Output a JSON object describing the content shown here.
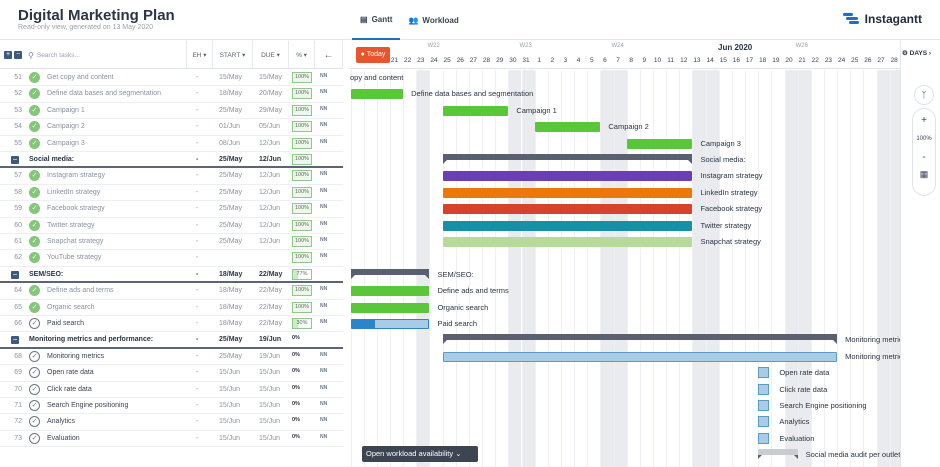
{
  "header": {
    "title": "Digital Marketing Plan",
    "subtitle": "Read-only view, generated on 13 May 2020",
    "tabs": [
      {
        "label": "Gantt",
        "icon": "gantt-icon"
      },
      {
        "label": "Workload",
        "icon": "users-icon"
      }
    ],
    "brand": "Instagantt"
  },
  "columns": {
    "search_placeholder": "Search tasks...",
    "eh": "EH",
    "start": "START",
    "due": "DUE",
    "pct": "%"
  },
  "timeline": {
    "today": "Today",
    "weeks": [
      {
        "label": "W22",
        "day": "24"
      },
      {
        "label": "W23",
        "day": "31"
      },
      {
        "label": "W24",
        "day": "7"
      },
      {
        "label": "W26",
        "day": "21"
      }
    ],
    "month": "Jun 2020",
    "days": [
      "21",
      "22",
      "23",
      "24",
      "25",
      "26",
      "27",
      "28",
      "29",
      "30",
      "31",
      "1",
      "2",
      "3",
      "4",
      "5",
      "6",
      "7",
      "8",
      "9",
      "10",
      "11",
      "12",
      "13",
      "14",
      "15",
      "16",
      "17",
      "18",
      "19",
      "20",
      "21",
      "22",
      "23",
      "24",
      "25",
      "26",
      "27",
      "28"
    ],
    "view": "DAYS"
  },
  "tasks": [
    {
      "num": "51",
      "name": "Get copy and content",
      "eh": "-",
      "start": "15/May",
      "due": "15/May",
      "pct": "100%",
      "state": "done"
    },
    {
      "num": "52",
      "name": "Define data bases and segmentation",
      "eh": "-",
      "start": "18/May",
      "due": "20/May",
      "pct": "100%",
      "state": "done"
    },
    {
      "num": "53",
      "name": "Campaign 1",
      "eh": "-",
      "start": "25/May",
      "due": "29/May",
      "pct": "100%",
      "state": "done"
    },
    {
      "num": "54",
      "name": "Campaign 2",
      "eh": "-",
      "start": "01/Jun",
      "due": "05/Jun",
      "pct": "100%",
      "state": "done"
    },
    {
      "num": "55",
      "name": "Campaign 3",
      "eh": "-",
      "start": "08/Jun",
      "due": "12/Jun",
      "pct": "100%",
      "state": "done"
    },
    {
      "num": "",
      "name": "Social media:",
      "eh": "-",
      "start": "25/May",
      "due": "12/Jun",
      "pct": "100%",
      "state": "group"
    },
    {
      "num": "57",
      "name": "Instagram strategy",
      "eh": "-",
      "start": "25/May",
      "due": "12/Jun",
      "pct": "100%",
      "state": "done"
    },
    {
      "num": "58",
      "name": "LinkedIn strategy",
      "eh": "-",
      "start": "25/May",
      "due": "12/Jun",
      "pct": "100%",
      "state": "done"
    },
    {
      "num": "59",
      "name": "Facebook strategy",
      "eh": "-",
      "start": "25/May",
      "due": "12/Jun",
      "pct": "100%",
      "state": "done"
    },
    {
      "num": "60",
      "name": "Twitter strategy",
      "eh": "-",
      "start": "25/May",
      "due": "12/Jun",
      "pct": "100%",
      "state": "done"
    },
    {
      "num": "61",
      "name": "Snapchat strategy",
      "eh": "-",
      "start": "25/May",
      "due": "12/Jun",
      "pct": "100%",
      "state": "done"
    },
    {
      "num": "62",
      "name": "YouTube strategy",
      "eh": "-",
      "start": "",
      "due": "",
      "pct": "100%",
      "state": "done"
    },
    {
      "num": "",
      "name": "SEM/SEO:",
      "eh": "-",
      "start": "18/May",
      "due": "22/May",
      "pct": "77%",
      "state": "group"
    },
    {
      "num": "64",
      "name": "Define ads and terms",
      "eh": "-",
      "start": "18/May",
      "due": "22/May",
      "pct": "100%",
      "state": "done"
    },
    {
      "num": "65",
      "name": "Organic search",
      "eh": "-",
      "start": "18/May",
      "due": "22/May",
      "pct": "100%",
      "state": "done"
    },
    {
      "num": "66",
      "name": "Paid search",
      "eh": "-",
      "start": "18/May",
      "due": "22/May",
      "pct": "30%",
      "state": "open"
    },
    {
      "num": "",
      "name": "Monitoring metrics and performance:",
      "eh": "-",
      "start": "25/May",
      "due": "19/Jun",
      "pct": "0%",
      "state": "group"
    },
    {
      "num": "68",
      "name": "Monitoring metrics",
      "eh": "-",
      "start": "25/May",
      "due": "19/Jun",
      "pct": "0%",
      "state": "open"
    },
    {
      "num": "69",
      "name": "Open rate data",
      "eh": "-",
      "start": "15/Jun",
      "due": "15/Jun",
      "pct": "0%",
      "state": "open"
    },
    {
      "num": "70",
      "name": "Click rate data",
      "eh": "-",
      "start": "15/Jun",
      "due": "15/Jun",
      "pct": "0%",
      "state": "open"
    },
    {
      "num": "71",
      "name": "Search Engine positioning",
      "eh": "-",
      "start": "15/Jun",
      "due": "15/Jun",
      "pct": "0%",
      "state": "open"
    },
    {
      "num": "72",
      "name": "Analytics",
      "eh": "-",
      "start": "15/Jun",
      "due": "15/Jun",
      "pct": "0%",
      "state": "open"
    },
    {
      "num": "73",
      "name": "Evaluation",
      "eh": "-",
      "start": "15/Jun",
      "due": "15/Jun",
      "pct": "0%",
      "state": "open"
    }
  ],
  "bars": [
    {
      "label": "opy and content",
      "type": "none",
      "color": ""
    },
    {
      "label": "Define data bases and segmentation",
      "type": "bar",
      "color": "#5ac63a"
    },
    {
      "label": "Campaign 1",
      "type": "bar",
      "color": "#5ac63a"
    },
    {
      "label": "Campaign 2",
      "type": "bar",
      "color": "#5ac63a"
    },
    {
      "label": "Campaign 3",
      "type": "bar",
      "color": "#5ac63a"
    },
    {
      "label": "Social media:",
      "type": "group",
      "color": "#5b6070"
    },
    {
      "label": "Instagram strategy",
      "type": "bar",
      "color": "#6a3fb5"
    },
    {
      "label": "LinkedIn strategy",
      "type": "bar",
      "color": "#e9780d"
    },
    {
      "label": "Facebook strategy",
      "type": "bar",
      "color": "#d4442a"
    },
    {
      "label": "Twitter strategy",
      "type": "bar",
      "color": "#1a8ea8"
    },
    {
      "label": "Snapchat strategy",
      "type": "bar",
      "color": "#b7d99a"
    },
    {
      "label": "",
      "type": "none",
      "color": ""
    },
    {
      "label": "SEM/SEO:",
      "type": "group",
      "color": "#5b6070"
    },
    {
      "label": "Define ads and terms",
      "type": "bar",
      "color": "#5ac63a"
    },
    {
      "label": "Organic search",
      "type": "bar",
      "color": "#5ac63a"
    },
    {
      "label": "Paid search",
      "type": "partial",
      "color": "#2a86c8"
    },
    {
      "label": "Monitoring metrics and performance:",
      "type": "group",
      "color": "#5b6070"
    },
    {
      "label": "Monitoring metrics",
      "type": "bar",
      "color": "#a8cbe6"
    },
    {
      "label": "Open rate data",
      "type": "milestone",
      "color": "#a8cbe6"
    },
    {
      "label": "Click rate data",
      "type": "milestone",
      "color": "#a8cbe6"
    },
    {
      "label": "Search Engine positioning",
      "type": "milestone",
      "color": "#a8cbe6"
    },
    {
      "label": "Analytics",
      "type": "milestone",
      "color": "#a8cbe6"
    },
    {
      "label": "Evaluation",
      "type": "milestone",
      "color": "#a8cbe6"
    },
    {
      "label": "Social media audit per outlet",
      "type": "group-light",
      "color": "#c9cdd3"
    }
  ],
  "workload_button": "Open workload availability",
  "zoom": {
    "plus": "+",
    "level": "100%",
    "minus": "-"
  }
}
